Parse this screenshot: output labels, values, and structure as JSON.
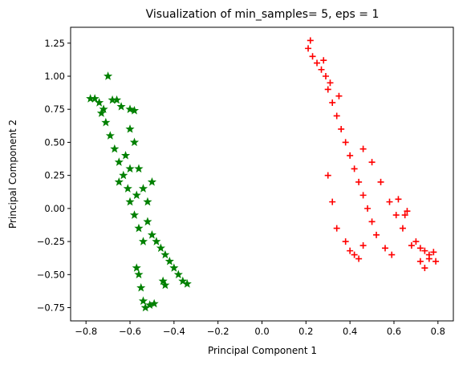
{
  "chart_data": {
    "type": "scatter",
    "title": "Visualization of min_samples= 5, eps = 1",
    "xlabel": "Principal Component 1",
    "ylabel": "Principal Component 2",
    "xlim": [
      -0.87,
      0.87
    ],
    "ylim": [
      -0.85,
      1.37
    ],
    "x_ticks": [
      -0.8,
      -0.6,
      -0.4,
      -0.2,
      0.0,
      0.2,
      0.4,
      0.6,
      0.8
    ],
    "x_tick_labels": [
      "−0.8",
      "−0.6",
      "−0.4",
      "−0.2",
      "0.0",
      "0.2",
      "0.4",
      "0.6",
      "0.8"
    ],
    "y_ticks": [
      -0.75,
      -0.5,
      -0.25,
      0.0,
      0.25,
      0.5,
      0.75,
      1.0,
      1.25
    ],
    "y_tick_labels": [
      "−0.75",
      "−0.50",
      "−0.25",
      "0.00",
      "0.25",
      "0.50",
      "0.75",
      "1.00",
      "1.25"
    ],
    "grid": false,
    "series": [
      {
        "marker": "star",
        "color": "#008000",
        "points": [
          [
            -0.78,
            0.83
          ],
          [
            -0.76,
            0.83
          ],
          [
            -0.74,
            0.8
          ],
          [
            -0.72,
            0.75
          ],
          [
            -0.7,
            1.0
          ],
          [
            -0.68,
            0.82
          ],
          [
            -0.66,
            0.82
          ],
          [
            -0.64,
            0.77
          ],
          [
            -0.6,
            0.75
          ],
          [
            -0.58,
            0.74
          ],
          [
            -0.73,
            0.72
          ],
          [
            -0.71,
            0.65
          ],
          [
            -0.69,
            0.55
          ],
          [
            -0.67,
            0.45
          ],
          [
            -0.65,
            0.35
          ],
          [
            -0.63,
            0.25
          ],
          [
            -0.61,
            0.15
          ],
          [
            -0.6,
            0.6
          ],
          [
            -0.58,
            0.5
          ],
          [
            -0.6,
            0.05
          ],
          [
            -0.58,
            -0.05
          ],
          [
            -0.56,
            -0.15
          ],
          [
            -0.54,
            -0.25
          ],
          [
            -0.52,
            -0.1
          ],
          [
            -0.5,
            -0.2
          ],
          [
            -0.56,
            0.3
          ],
          [
            -0.54,
            0.15
          ],
          [
            -0.52,
            0.05
          ],
          [
            -0.5,
            0.2
          ],
          [
            -0.48,
            -0.25
          ],
          [
            -0.46,
            -0.3
          ],
          [
            -0.44,
            -0.35
          ],
          [
            -0.42,
            -0.4
          ],
          [
            -0.4,
            -0.45
          ],
          [
            -0.38,
            -0.5
          ],
          [
            -0.36,
            -0.55
          ],
          [
            -0.34,
            -0.57
          ],
          [
            -0.56,
            -0.5
          ],
          [
            -0.55,
            -0.6
          ],
          [
            -0.54,
            -0.7
          ],
          [
            -0.53,
            -0.75
          ],
          [
            -0.51,
            -0.73
          ],
          [
            -0.49,
            -0.72
          ],
          [
            -0.57,
            -0.45
          ],
          [
            -0.45,
            -0.55
          ],
          [
            -0.44,
            -0.58
          ],
          [
            -0.65,
            0.2
          ],
          [
            -0.62,
            0.4
          ],
          [
            -0.6,
            0.3
          ],
          [
            -0.57,
            0.1
          ]
        ]
      },
      {
        "marker": "plus",
        "color": "#ff0000",
        "points": [
          [
            0.22,
            1.27
          ],
          [
            0.21,
            1.21
          ],
          [
            0.23,
            1.15
          ],
          [
            0.25,
            1.1
          ],
          [
            0.27,
            1.05
          ],
          [
            0.29,
            1.0
          ],
          [
            0.3,
            0.9
          ],
          [
            0.32,
            0.8
          ],
          [
            0.34,
            0.7
          ],
          [
            0.36,
            0.6
          ],
          [
            0.38,
            0.5
          ],
          [
            0.4,
            0.4
          ],
          [
            0.42,
            0.3
          ],
          [
            0.44,
            0.2
          ],
          [
            0.46,
            0.1
          ],
          [
            0.48,
            0.0
          ],
          [
            0.5,
            -0.1
          ],
          [
            0.52,
            -0.2
          ],
          [
            0.46,
            0.45
          ],
          [
            0.5,
            0.35
          ],
          [
            0.54,
            0.2
          ],
          [
            0.58,
            0.05
          ],
          [
            0.61,
            -0.05
          ],
          [
            0.64,
            -0.15
          ],
          [
            0.3,
            0.25
          ],
          [
            0.32,
            0.05
          ],
          [
            0.34,
            -0.15
          ],
          [
            0.38,
            -0.25
          ],
          [
            0.4,
            -0.32
          ],
          [
            0.42,
            -0.35
          ],
          [
            0.44,
            -0.38
          ],
          [
            0.46,
            -0.28
          ],
          [
            0.65,
            -0.05
          ],
          [
            0.7,
            -0.25
          ],
          [
            0.72,
            -0.3
          ],
          [
            0.74,
            -0.32
          ],
          [
            0.76,
            -0.35
          ],
          [
            0.78,
            -0.33
          ],
          [
            0.79,
            -0.4
          ],
          [
            0.72,
            -0.4
          ],
          [
            0.74,
            -0.45
          ],
          [
            0.76,
            -0.38
          ],
          [
            0.62,
            0.07
          ],
          [
            0.66,
            -0.02
          ],
          [
            0.59,
            -0.35
          ],
          [
            0.56,
            -0.3
          ],
          [
            0.68,
            -0.28
          ],
          [
            0.31,
            0.95
          ],
          [
            0.35,
            0.85
          ],
          [
            0.28,
            1.12
          ]
        ]
      }
    ]
  }
}
